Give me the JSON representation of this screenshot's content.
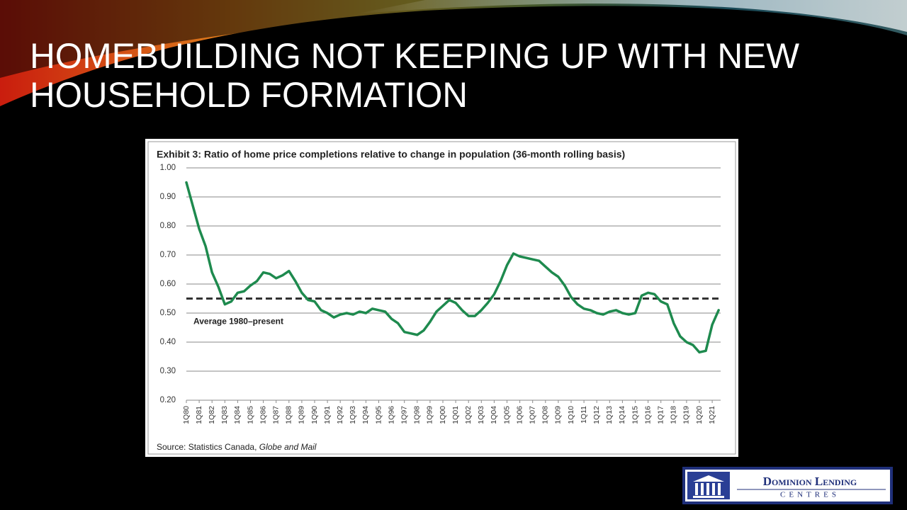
{
  "slide": {
    "title_lines": [
      "HOMEBUILDING NOT KEEPING UP WITH NEW",
      "HOUSEHOLD FORMATION"
    ],
    "logo": {
      "name": "Dominion Lending",
      "subname": "CENTRES"
    }
  },
  "chart_data": {
    "type": "line",
    "title": "Exhibit 3: Ratio of home price completions relative to change in population (36-month rolling basis)",
    "source": [
      "Source: Statistics Canada, ",
      "Globe and Mail"
    ],
    "categories": [
      "1Q80",
      null,
      "1Q81",
      null,
      "1Q82",
      null,
      "1Q83",
      null,
      "1Q84",
      null,
      "1Q85",
      null,
      "1Q86",
      null,
      "1Q87",
      null,
      "1Q88",
      null,
      "1Q89",
      null,
      "1Q90",
      null,
      "1Q91",
      null,
      "1Q92",
      null,
      "1Q93",
      null,
      "1Q94",
      null,
      "1Q95",
      null,
      "1Q96",
      null,
      "1Q97",
      null,
      "1Q98",
      null,
      "1Q99",
      null,
      "1Q00",
      null,
      "1Q01",
      null,
      "1Q02",
      null,
      "1Q03",
      null,
      "1Q04",
      null,
      "1Q05",
      null,
      "1Q06",
      null,
      "1Q07",
      null,
      "1Q08",
      null,
      "1Q09",
      null,
      "1Q10",
      null,
      "1Q11",
      null,
      "1Q12",
      null,
      "1Q13",
      null,
      "1Q14",
      null,
      "1Q15",
      null,
      "1Q16",
      null,
      "1Q17",
      null,
      "1Q18",
      null,
      "1Q19",
      null,
      "1Q20",
      null,
      "1Q21",
      null
    ],
    "series": [
      {
        "name": "Ratio",
        "color": "#1e8a4e",
        "values": [
          0.95,
          0.87,
          0.79,
          0.73,
          0.64,
          0.59,
          0.53,
          0.54,
          0.57,
          0.575,
          0.595,
          0.61,
          0.64,
          0.635,
          0.62,
          0.63,
          0.645,
          0.61,
          0.57,
          0.545,
          0.54,
          0.51,
          0.5,
          0.485,
          0.495,
          0.5,
          0.495,
          0.505,
          0.5,
          0.515,
          0.51,
          0.505,
          0.48,
          0.465,
          0.435,
          0.43,
          0.425,
          0.44,
          0.47,
          0.505,
          0.525,
          0.545,
          0.535,
          0.51,
          0.49,
          0.49,
          0.51,
          0.535,
          0.565,
          0.61,
          0.665,
          0.705,
          0.695,
          0.69,
          0.685,
          0.68,
          0.66,
          0.64,
          0.625,
          0.595,
          0.555,
          0.53,
          0.515,
          0.51,
          0.5,
          0.495,
          0.505,
          0.51,
          0.5,
          0.495,
          0.5,
          0.56,
          0.57,
          0.565,
          0.54,
          0.53,
          0.465,
          0.42,
          0.4,
          0.39,
          0.365,
          0.37,
          0.46,
          0.51
        ]
      }
    ],
    "average": {
      "value": 0.55,
      "label": "Average 1980–present",
      "color": "#333333"
    },
    "ylim": [
      0.2,
      1.0
    ],
    "yticks": [
      {
        "value": 0.2,
        "label": "0.20"
      },
      {
        "value": 0.3,
        "label": "0.30"
      },
      {
        "value": 0.4,
        "label": "0.40"
      },
      {
        "value": 0.5,
        "label": "0.50"
      },
      {
        "value": 0.6,
        "label": "0.60"
      },
      {
        "value": 0.7,
        "label": "0.70"
      },
      {
        "value": 0.8,
        "label": "0.80"
      },
      {
        "value": 0.9,
        "label": "0.90"
      },
      {
        "value": 1.0,
        "label": "1.00"
      }
    ],
    "grid": true
  }
}
